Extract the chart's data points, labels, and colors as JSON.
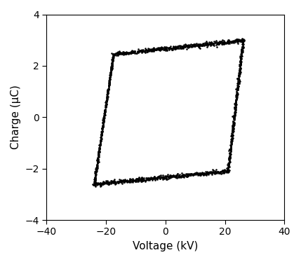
{
  "xlabel": "Voltage (kV)",
  "ylabel": "Charge (μC)",
  "xlim": [
    -40,
    40
  ],
  "ylim": [
    -4,
    4
  ],
  "xticks": [
    -40,
    -20,
    0,
    20,
    40
  ],
  "yticks": [
    -4,
    -2,
    0,
    2,
    4
  ],
  "dot_color": "#000000",
  "dot_size": 3.5,
  "background_color": "#ffffff",
  "seg1_v": [
    -24.0,
    -17.5
  ],
  "seg1_q": [
    -2.6,
    2.45
  ],
  "seg2_v": [
    -17.5,
    26.1
  ],
  "seg2_q": [
    2.45,
    3.0
  ],
  "seg3_v": [
    26.1,
    21.0
  ],
  "seg3_q": [
    3.0,
    -2.1
  ],
  "seg4_v": [
    21.0,
    -24.0
  ],
  "seg4_q": [
    -2.1,
    -2.6
  ],
  "n_seg1": 400,
  "n_seg2": 500,
  "n_seg3": 400,
  "n_seg4": 500,
  "noise_v": 0.35,
  "noise_q": 0.08
}
